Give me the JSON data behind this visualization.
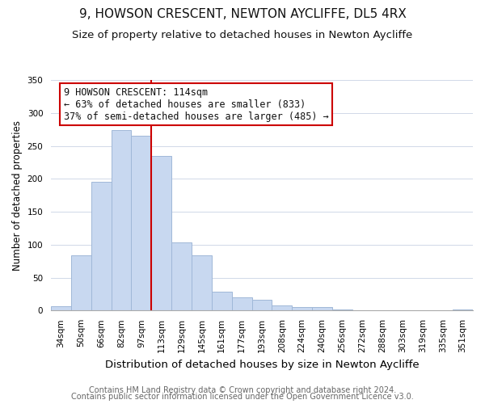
{
  "title": "9, HOWSON CRESCENT, NEWTON AYCLIFFE, DL5 4RX",
  "subtitle": "Size of property relative to detached houses in Newton Aycliffe",
  "xlabel": "Distribution of detached houses by size in Newton Aycliffe",
  "ylabel": "Number of detached properties",
  "bin_labels": [
    "34sqm",
    "50sqm",
    "66sqm",
    "82sqm",
    "97sqm",
    "113sqm",
    "129sqm",
    "145sqm",
    "161sqm",
    "177sqm",
    "193sqm",
    "208sqm",
    "224sqm",
    "240sqm",
    "256sqm",
    "272sqm",
    "288sqm",
    "303sqm",
    "319sqm",
    "335sqm",
    "351sqm"
  ],
  "bar_values": [
    6,
    84,
    196,
    274,
    265,
    235,
    103,
    84,
    28,
    20,
    16,
    8,
    5,
    5,
    2,
    0,
    0,
    1,
    0,
    0,
    2
  ],
  "bar_color": "#c8d8f0",
  "bar_edge_color": "#a0b8d8",
  "vline_x_idx": 5,
  "vline_color": "#cc0000",
  "annotation_line1": "9 HOWSON CRESCENT: 114sqm",
  "annotation_line2": "← 63% of detached houses are smaller (833)",
  "annotation_line3": "37% of semi-detached houses are larger (485) →",
  "annotation_box_color": "#ffffff",
  "annotation_box_edge": "#cc0000",
  "ylim": [
    0,
    350
  ],
  "footer1": "Contains HM Land Registry data © Crown copyright and database right 2024.",
  "footer2": "Contains public sector information licensed under the Open Government Licence v3.0.",
  "title_fontsize": 11,
  "subtitle_fontsize": 9.5,
  "xlabel_fontsize": 9.5,
  "ylabel_fontsize": 8.5,
  "tick_fontsize": 7.5,
  "annotation_fontsize": 8.5,
  "footer_fontsize": 7
}
